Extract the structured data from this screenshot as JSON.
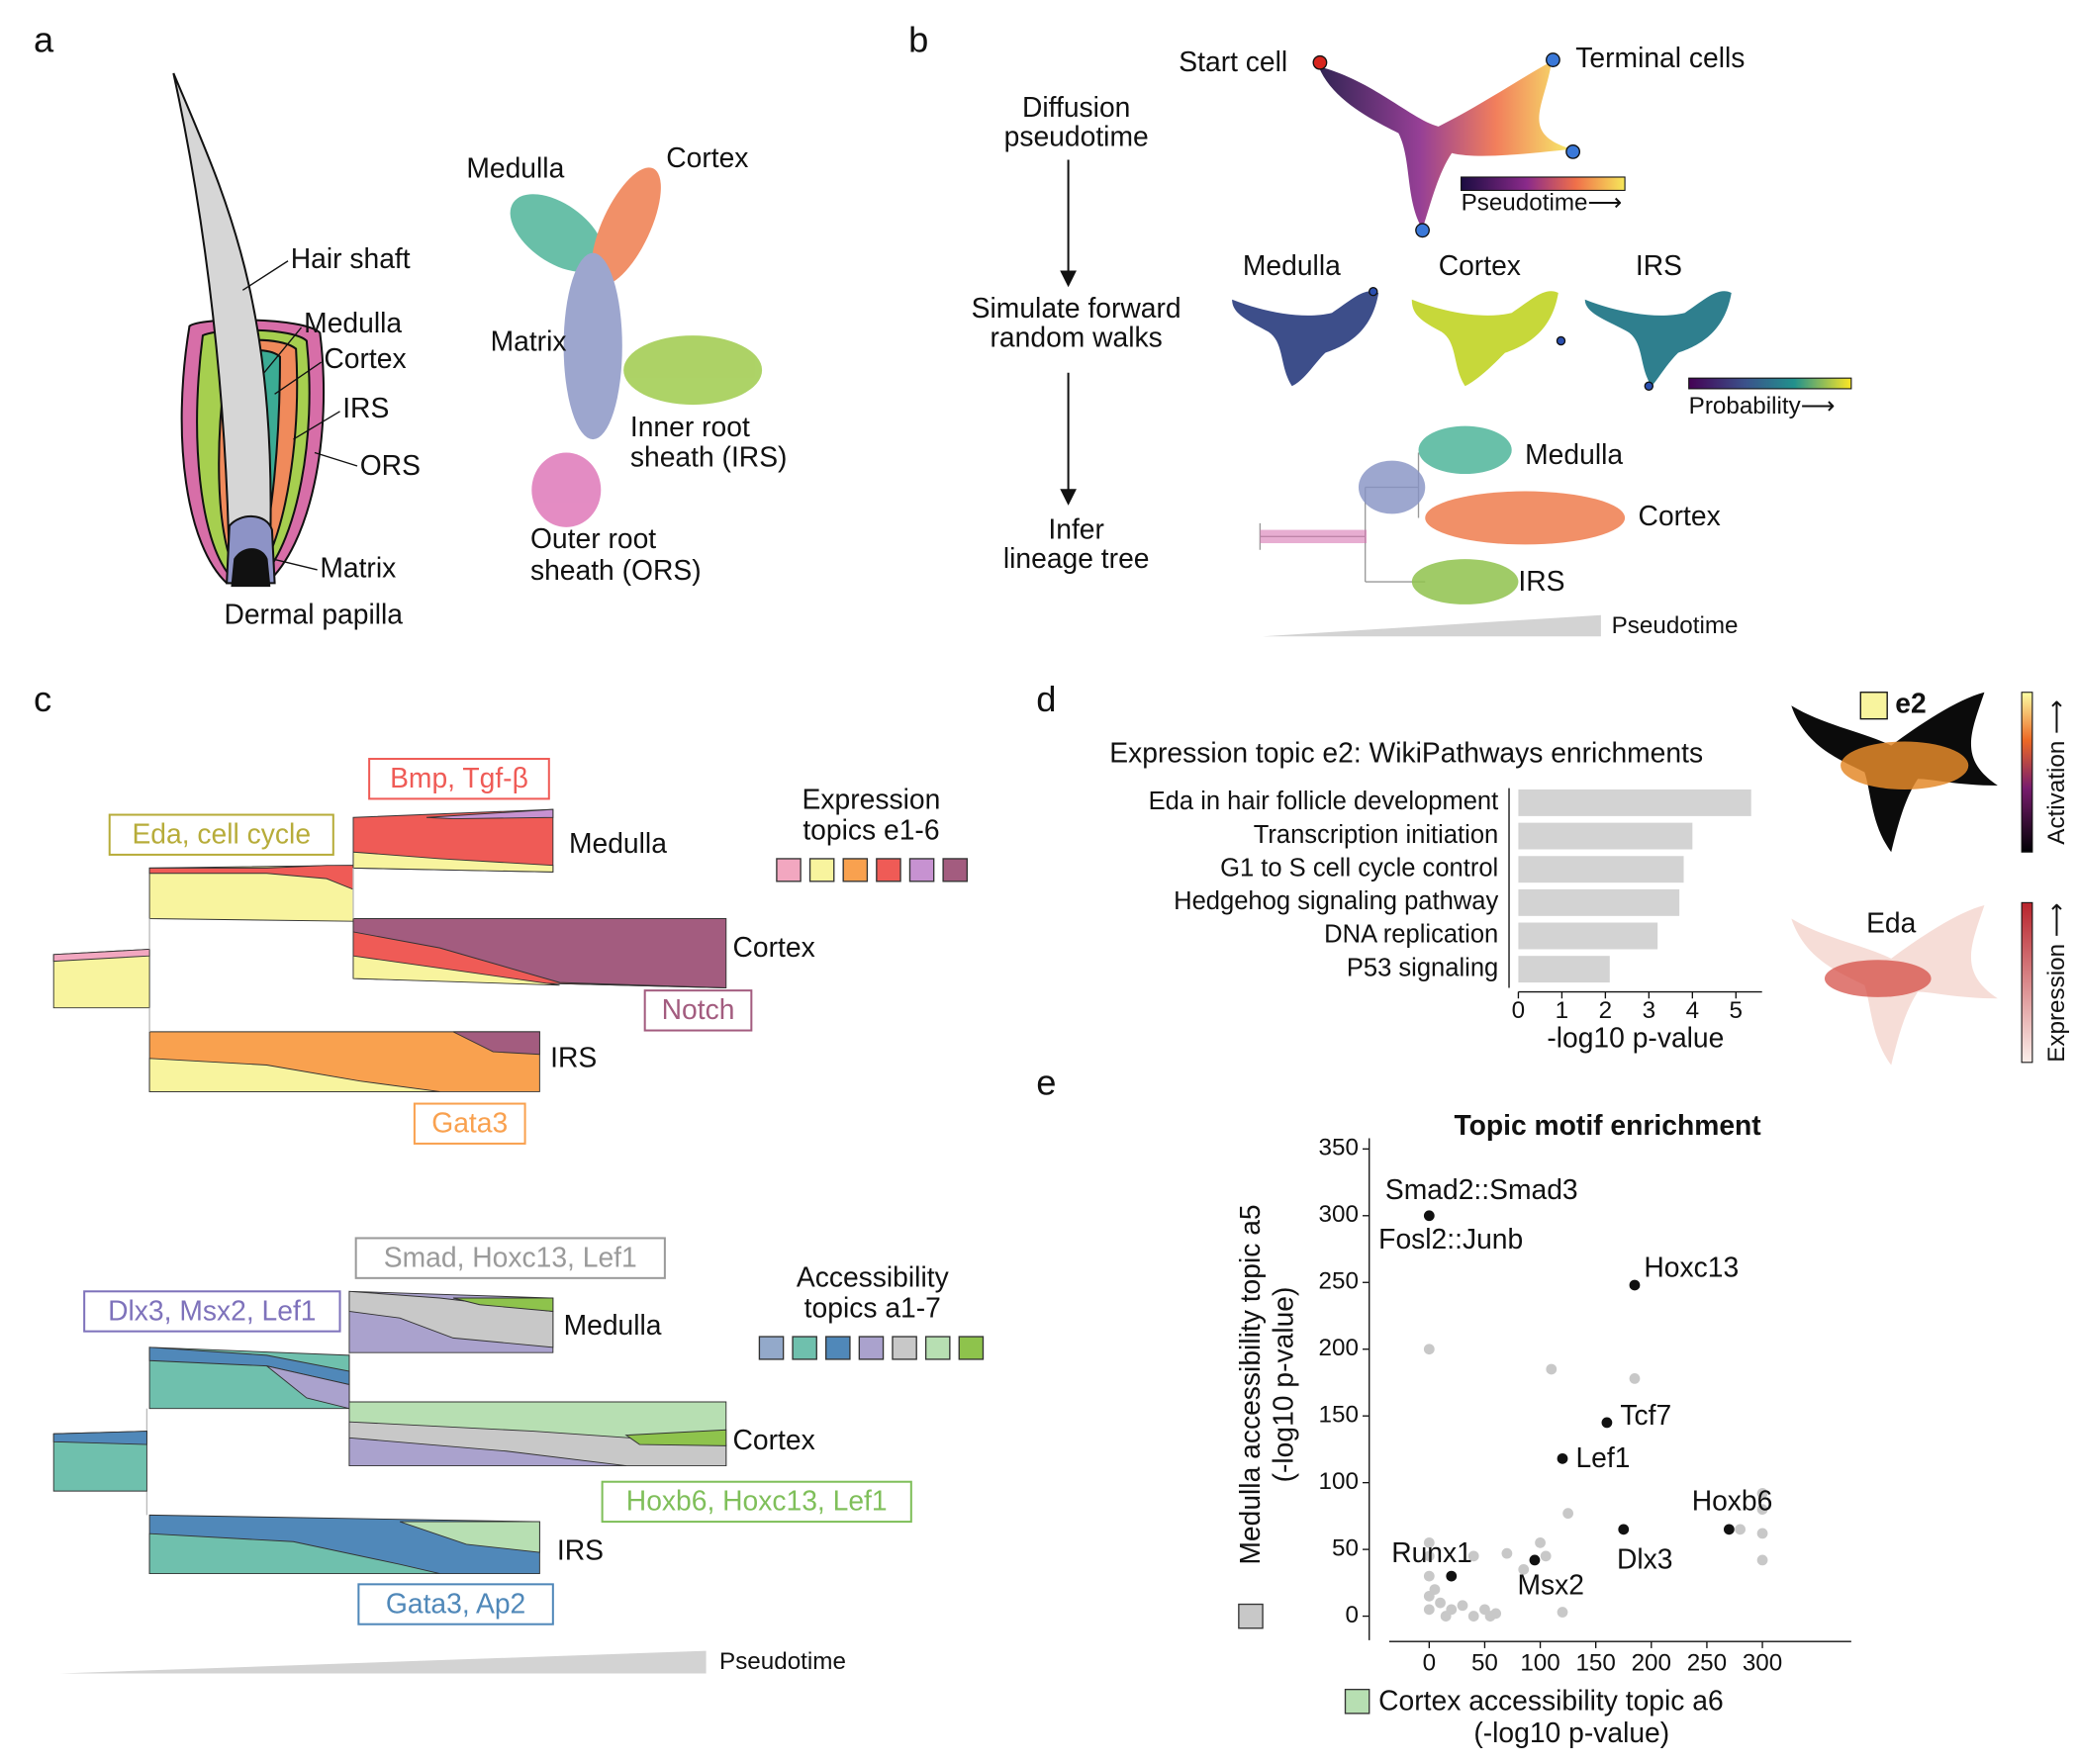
{
  "panel_labels": [
    "a",
    "b",
    "c",
    "d",
    "e"
  ],
  "panel_a": {
    "anatomy_labels": [
      "Hair shaft",
      "Medulla",
      "Cortex",
      "IRS",
      "ORS",
      "Matrix",
      "Dermal papilla"
    ],
    "umap_labels": [
      "Medulla",
      "Cortex",
      "Matrix",
      [
        "Inner root",
        "sheath (IRS)"
      ],
      [
        "Outer root",
        "sheath (ORS)"
      ]
    ]
  },
  "panel_b": {
    "steps": [
      [
        "Diffusion",
        "pseudotime"
      ],
      [
        "Simulate forward",
        "random walks"
      ],
      [
        "Infer",
        "lineage tree"
      ]
    ],
    "start_label": "Start cell",
    "terminal_label": "Terminal cells",
    "pseudotime_bar_label": "Pseudotime⟶",
    "walk_labels": [
      "Medulla",
      "Cortex",
      "IRS"
    ],
    "probability_bar_label": "Probability⟶",
    "tree_labels": [
      "Medulla",
      "Cortex",
      "IRS"
    ],
    "tree_axis_label": "Pseudotime"
  },
  "panel_c": {
    "expression": {
      "legend_title": [
        "Expression",
        "topics e1-6"
      ],
      "colors": [
        "#f2a7c0",
        "#f8f49e",
        "#f9a14f",
        "#ef5b56",
        "#c792d1",
        "#a35c7f"
      ],
      "topic_labels": [
        "Eda, cell cycle",
        "Bmp, Tgf-β",
        "Notch",
        "Gata3"
      ],
      "lineage_labels": [
        "Medulla",
        "Cortex",
        "IRS"
      ]
    },
    "accessibility": {
      "legend_title": [
        "Accessibility",
        "topics a1-7"
      ],
      "colors": [
        "#93a9ca",
        "#6fc0ad",
        "#5088b9",
        "#aaa2cd",
        "#c8c8c8",
        "#b7dfb2",
        "#8ec34c"
      ],
      "topic_labels": [
        "Smad, Hoxc13, Lef1",
        "Dlx3, Msx2, Lef1",
        "Hoxb6, Hoxc13, Lef1",
        "Gata3, Ap2"
      ],
      "lineage_labels": [
        "Medulla",
        "Cortex",
        "IRS"
      ]
    },
    "axis_label": "Pseudotime"
  },
  "panel_d": {
    "umap_labels": [
      "e2",
      "Activation ⟶",
      "Eda",
      "Expression ⟶"
    ]
  },
  "chart_data": [
    {
      "type": "bar",
      "orientation": "horizontal",
      "title": "Expression topic e2: WikiPathways enrichments",
      "categories": [
        "Eda in hair follicle development",
        "Transcription initiation",
        "G1 to S cell cycle control",
        "Hedgehog signaling pathway",
        "DNA replication",
        "P53 signaling"
      ],
      "values": [
        5.35,
        4.0,
        3.8,
        3.7,
        3.2,
        2.1
      ],
      "color": "#d3d3d3",
      "xlim": [
        0,
        5.6
      ],
      "xticks": [
        0,
        1,
        2,
        3,
        4,
        5
      ],
      "xlabel": "-log10 p-value"
    },
    {
      "type": "scatter",
      "title": "Topic motif enrichment",
      "xlabel": [
        "Cortex accessibility topic a6",
        "(-log10 p-value)"
      ],
      "ylabel": [
        "Medulla accessibility topic a5",
        "(-log10 p-value)"
      ],
      "xlabel_color": "#b7dfb2",
      "ylabel_color": "#c8c8c8",
      "xlim": [
        -36,
        380
      ],
      "ylim": [
        -18,
        358
      ],
      "xticks": [
        0,
        50,
        100,
        150,
        200,
        250,
        300
      ],
      "yticks": [
        0,
        50,
        100,
        150,
        200,
        250,
        300,
        350
      ],
      "series": [
        {
          "color": "#c8c8c8",
          "x": [
            0,
            110,
            185,
            125,
            70,
            100,
            300,
            300,
            280,
            300,
            300,
            0,
            0,
            0,
            5,
            10,
            0,
            20,
            30,
            50,
            60,
            120,
            40,
            0,
            15,
            40,
            55,
            105,
            85
          ],
          "values": [
            200,
            185,
            178,
            77,
            47,
            55,
            92,
            80,
            65,
            62,
            42,
            55,
            45,
            30,
            20,
            10,
            5,
            5,
            8,
            5,
            2,
            3,
            45,
            15,
            0,
            0,
            0,
            45,
            35
          ]
        },
        {
          "color": "#111111",
          "x": [
            0,
            185,
            160,
            120,
            175,
            270,
            20,
            95
          ],
          "values": [
            300,
            248,
            145,
            118,
            65,
            65,
            30,
            42
          ],
          "point_labels": [
            [
              "Smad2::Smad3",
              "Fosl2::Junb"
            ],
            [
              "Hoxc13"
            ],
            [
              "Tcf7"
            ],
            [
              "Lef1"
            ],
            [
              "Dlx3"
            ],
            [
              "Hoxb6"
            ],
            [
              "Runx1"
            ],
            [
              "Msx2"
            ]
          ]
        }
      ]
    }
  ]
}
